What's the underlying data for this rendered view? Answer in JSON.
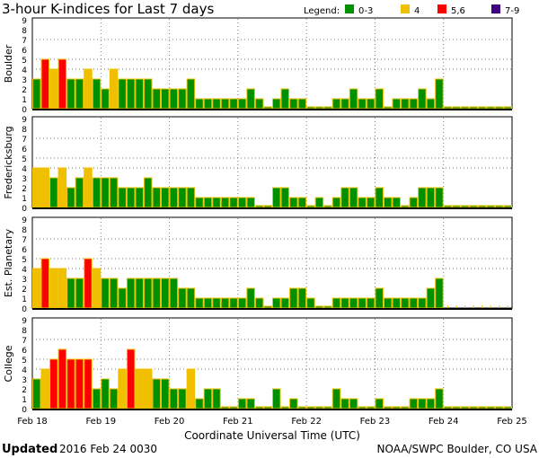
{
  "chart_data": {
    "type": "bar",
    "title": "3-hour K-indices for Last 7 days",
    "legend": {
      "label": "Legend:",
      "placement": "top-right",
      "entries": [
        {
          "label": "0-3",
          "color": "#009000"
        },
        {
          "label": "4",
          "color": "#f0c000"
        },
        {
          "label": "5,6",
          "color": "#ff0000"
        },
        {
          "label": "7-9",
          "color": "#400080"
        }
      ]
    },
    "xlabel": "Coordinate Universal Time (UTC)",
    "x_ticks": [
      "Feb 18",
      "Feb 19",
      "Feb 20",
      "Feb 21",
      "Feb 22",
      "Feb 23",
      "Feb 24",
      "Feb 25"
    ],
    "y_ticks": [
      "0",
      "1",
      "2",
      "3",
      "4",
      "5",
      "6",
      "7",
      "8",
      "9"
    ],
    "ylim": [
      0,
      9
    ],
    "gridlines_y": [
      4,
      5,
      7
    ],
    "bars_per_day": 8,
    "outline_color": "#f0c000",
    "series": [
      {
        "name": "Boulder",
        "values": [
          3,
          5,
          4,
          5,
          3,
          3,
          4,
          3,
          2,
          4,
          3,
          3,
          3,
          3,
          2,
          2,
          2,
          2,
          3,
          1,
          1,
          1,
          1,
          1,
          1,
          2,
          1,
          0,
          1,
          2,
          1,
          1,
          0,
          0,
          0,
          1,
          1,
          2,
          1,
          1,
          2,
          0,
          1,
          1,
          1,
          2,
          1,
          3,
          0,
          0,
          0,
          0,
          0,
          0,
          0,
          0
        ]
      },
      {
        "name": "Fredericksburg",
        "values": [
          4,
          4,
          3,
          4,
          2,
          3,
          4,
          3,
          3,
          3,
          2,
          2,
          2,
          3,
          2,
          2,
          2,
          2,
          2,
          1,
          1,
          1,
          1,
          1,
          1,
          1,
          0,
          0,
          2,
          2,
          1,
          1,
          0,
          1,
          0,
          1,
          2,
          2,
          1,
          1,
          2,
          1,
          1,
          0,
          1,
          2,
          2,
          2,
          0,
          0,
          0,
          0,
          0,
          0,
          0,
          0
        ]
      },
      {
        "name": "Est. Planetary",
        "values": [
          4,
          5,
          4,
          4,
          3,
          3,
          5,
          4,
          3,
          3,
          2,
          3,
          3,
          3,
          3,
          3,
          3,
          2,
          2,
          1,
          1,
          1,
          1,
          1,
          1,
          2,
          1,
          0,
          1,
          1,
          2,
          2,
          1,
          0,
          0,
          1,
          1,
          1,
          1,
          1,
          2,
          1,
          1,
          1,
          1,
          1,
          2,
          3,
          null,
          null,
          null,
          null,
          null,
          null,
          null,
          null
        ]
      },
      {
        "name": "College",
        "values": [
          3,
          4,
          5,
          6,
          5,
          5,
          5,
          2,
          3,
          2,
          4,
          6,
          4,
          4,
          3,
          3,
          2,
          2,
          4,
          1,
          2,
          2,
          0,
          0,
          1,
          1,
          0,
          0,
          2,
          0,
          1,
          0,
          0,
          0,
          0,
          2,
          1,
          1,
          0,
          0,
          1,
          0,
          0,
          0,
          1,
          1,
          1,
          2,
          0,
          0,
          0,
          0,
          0,
          0,
          0,
          0
        ]
      }
    ]
  },
  "footer": {
    "updated_label": "Updated",
    "updated_value": "2016 Feb 24 0030",
    "credit": "NOAA/SWPC Boulder, CO USA"
  }
}
